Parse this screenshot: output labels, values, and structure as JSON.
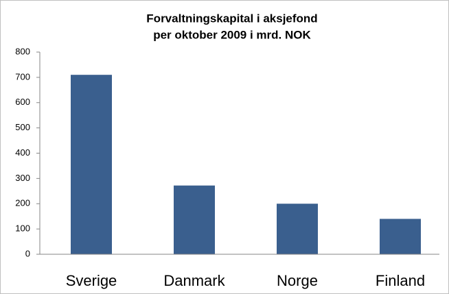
{
  "chart_data": {
    "type": "bar",
    "title": [
      "Forvaltningskapital i aksjefond",
      "per oktober 2009 i mrd. NOK"
    ],
    "categories": [
      "Sverige",
      "Danmark",
      "Norge",
      "Finland"
    ],
    "values": [
      710,
      272,
      200,
      140
    ],
    "color": "#3a5f8e",
    "ylim": [
      0,
      800
    ],
    "yticks": [
      0,
      100,
      200,
      300,
      400,
      500,
      600,
      700,
      800
    ],
    "grid": false
  }
}
